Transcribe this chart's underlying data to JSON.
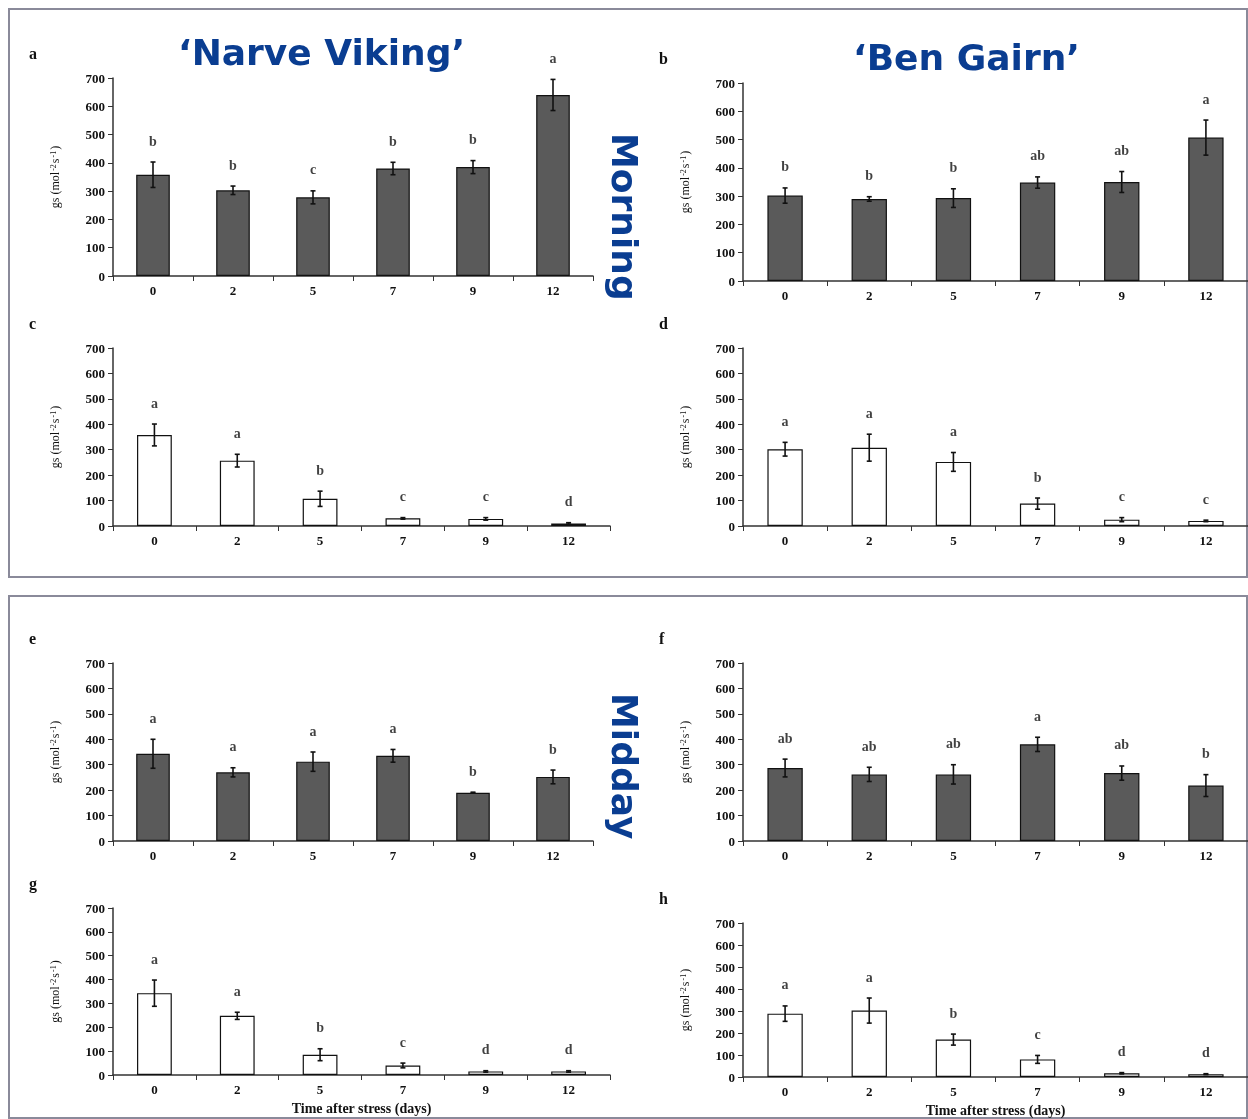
{
  "chart_data": [
    {
      "type": "bar",
      "title": "a",
      "ylabel": "gs (mol$^{-2}$s$^{-1}$)",
      "categories": [
        "0",
        "2",
        "5",
        "7",
        "9",
        "12"
      ],
      "values": [
        358,
        303,
        278,
        380,
        385,
        640
      ],
      "errors": [
        45,
        15,
        23,
        22,
        23,
        55
      ],
      "color": "#5a5a5a",
      "ylim": [
        0,
        700
      ],
      "yticks": [
        0,
        100,
        200,
        300,
        400,
        500,
        600,
        700
      ],
      "annotations": [
        "‘Narve Viking’",
        "Morning",
        "b",
        "b",
        "c",
        "b",
        "b",
        "a"
      ]
    },
    {
      "type": "bar",
      "title": "b",
      "ylabel": "gs (mol$^{-2}$s$^{-1}$)",
      "categories": [
        "0",
        "2",
        "5",
        "7",
        "9",
        "12"
      ],
      "values": [
        302,
        290,
        293,
        348,
        350,
        507
      ],
      "errors": [
        27,
        8,
        33,
        20,
        37,
        62
      ],
      "color": "#5a5a5a",
      "ylim": [
        0,
        700
      ],
      "yticks": [
        0,
        100,
        200,
        300,
        400,
        500,
        600,
        700
      ],
      "annotations": [
        "‘Ben Gairn’",
        "b",
        "b",
        "b",
        "ab",
        "ab",
        "a"
      ]
    },
    {
      "type": "bar",
      "title": "c",
      "ylabel": "gs (mol$^{-2}$s$^{-1}$)",
      "categories": [
        "0",
        "2",
        "5",
        "7",
        "9",
        "12"
      ],
      "values": [
        358,
        257,
        107,
        30,
        28,
        10
      ],
      "errors": [
        43,
        25,
        30,
        3,
        5,
        3
      ],
      "color": "#ffffff",
      "ylim": [
        0,
        700
      ],
      "yticks": [
        0,
        100,
        200,
        300,
        400,
        500,
        600,
        700
      ],
      "annotations": [
        "a",
        "a",
        "b",
        "c",
        "c",
        "d"
      ]
    },
    {
      "type": "bar",
      "title": "d",
      "ylabel": "gs (mol$^{-2}$s$^{-1}$)",
      "categories": [
        "0",
        "2",
        "5",
        "7",
        "9",
        "12"
      ],
      "values": [
        302,
        308,
        252,
        88,
        25,
        20
      ],
      "errors": [
        27,
        53,
        37,
        22,
        8,
        3
      ],
      "color": "#ffffff",
      "ylim": [
        0,
        700
      ],
      "yticks": [
        0,
        100,
        200,
        300,
        400,
        500,
        600,
        700
      ],
      "annotations": [
        "a",
        "a",
        "a",
        "b",
        "c",
        "c"
      ]
    },
    {
      "type": "bar",
      "title": "e",
      "ylabel": "gs (mol$^{-2}$s$^{-1}$)",
      "categories": [
        "0",
        "2",
        "5",
        "7",
        "9",
        "12"
      ],
      "values": [
        343,
        270,
        312,
        335,
        190,
        252
      ],
      "errors": [
        57,
        18,
        38,
        25,
        2,
        27
      ],
      "color": "#5a5a5a",
      "ylim": [
        0,
        700
      ],
      "yticks": [
        0,
        100,
        200,
        300,
        400,
        500,
        600,
        700
      ],
      "annotations": [
        "Midday",
        "a",
        "a",
        "a",
        "a",
        "b",
        "b"
      ]
    },
    {
      "type": "bar",
      "title": "f",
      "ylabel": "gs (mol$^{-2}$s$^{-1}$)",
      "categories": [
        "0",
        "2",
        "5",
        "7",
        "9",
        "12"
      ],
      "values": [
        287,
        262,
        262,
        380,
        267,
        218
      ],
      "errors": [
        35,
        28,
        38,
        28,
        28,
        43
      ],
      "color": "#5a5a5a",
      "ylim": [
        0,
        700
      ],
      "yticks": [
        0,
        100,
        200,
        300,
        400,
        500,
        600,
        700
      ],
      "annotations": [
        "ab",
        "ab",
        "ab",
        "a",
        "ab",
        "b"
      ]
    },
    {
      "type": "bar",
      "title": "g",
      "xlabel": "Time after stress (days)",
      "ylabel": "gs (mol$^{-2}$s$^{-1}$)",
      "categories": [
        "0",
        "2",
        "5",
        "7",
        "9",
        "12"
      ],
      "values": [
        343,
        248,
        85,
        40,
        15,
        15
      ],
      "errors": [
        55,
        15,
        25,
        10,
        3,
        3
      ],
      "color": "#ffffff",
      "ylim": [
        0,
        700
      ],
      "yticks": [
        0,
        100,
        200,
        300,
        400,
        500,
        600,
        700
      ],
      "annotations": [
        "a",
        "a",
        "b",
        "c",
        "d",
        "d"
      ]
    },
    {
      "type": "bar",
      "title": "h",
      "xlabel": "Time after stress (days)",
      "ylabel": "gs (mol$^{-2}$s$^{-1}$)",
      "categories": [
        "0",
        "2",
        "5",
        "7",
        "9",
        "12"
      ],
      "values": [
        288,
        302,
        170,
        80,
        17,
        13
      ],
      "errors": [
        35,
        57,
        25,
        18,
        3,
        2
      ],
      "color": "#ffffff",
      "ylim": [
        0,
        700
      ],
      "yticks": [
        0,
        100,
        200,
        300,
        400,
        500,
        600,
        700
      ],
      "annotations": [
        "a",
        "a",
        "b",
        "c",
        "d",
        "d"
      ]
    }
  ]
}
